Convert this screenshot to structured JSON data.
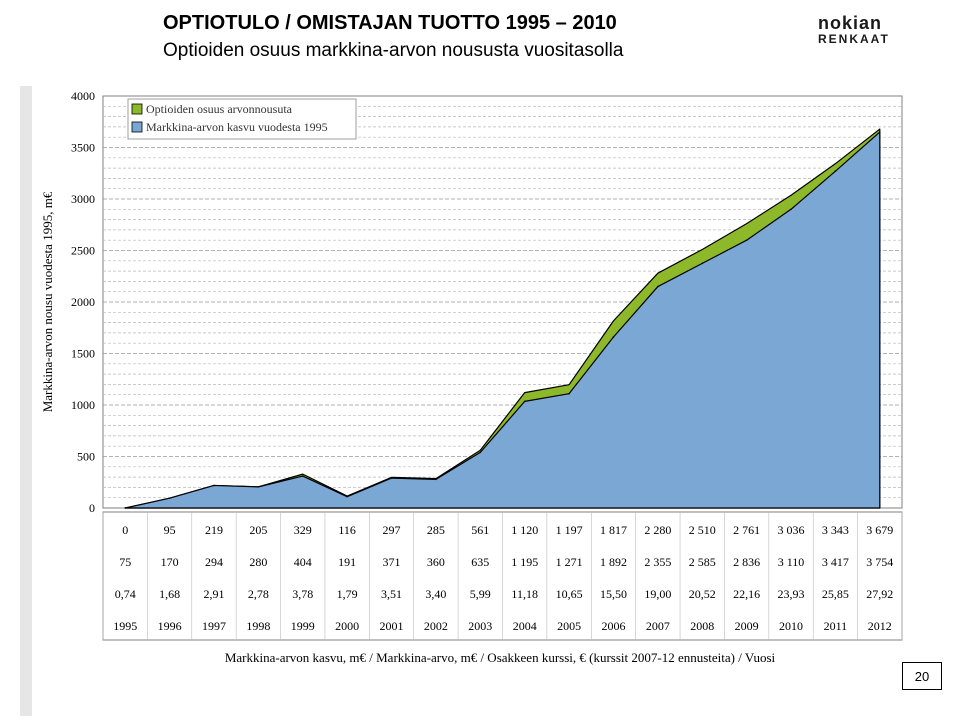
{
  "header": {
    "title": "OPTIOTULO / OMISTAJAN TUOTTO 1995 – 2010",
    "subtitle": "Optioiden osuus markkina-arvon noususta vuositasolla",
    "logo_line1": "nokian",
    "logo_line2": "RENKAAT"
  },
  "page_number": "20",
  "chart_data": {
    "type": "area",
    "ylabel": "Markkina-arvon nousu vuodesta 1995, m€",
    "xlabel": "Markkina-arvon kasvu, m€ / Markkina-arvo, m€ / Osakkeen kurssi, € (kurssit 2007-12 ennusteita) / Vuosi",
    "ylim": [
      0,
      4000
    ],
    "yticks": [
      "4000",
      "3500",
      "3000",
      "2500",
      "2000",
      "1500",
      "1000",
      "500",
      "0"
    ],
    "legend_position": "top-left",
    "grid": true,
    "x": [
      "1995",
      "1996",
      "1997",
      "1998",
      "1999",
      "2000",
      "2001",
      "2002",
      "2003",
      "2004",
      "2005",
      "2006",
      "2007",
      "2008",
      "2009",
      "2010",
      "2011",
      "2012"
    ],
    "series": [
      {
        "name": "Optioiden osuus arvonnousuta",
        "color": "#8DB82A",
        "values": [
          0,
          95,
          219,
          205,
          329,
          116,
          297,
          285,
          561,
          1120,
          1197,
          1817,
          2280,
          2510,
          2761,
          3036,
          3343,
          3679
        ]
      },
      {
        "name": "Markkina-arvon kasvu vuodesta 1995",
        "color": "#7BA7D4",
        "values": [
          0,
          95,
          219,
          205,
          310,
          110,
          290,
          278,
          540,
          1035,
          1110,
          1660,
          2150,
          2375,
          2600,
          2900,
          3270,
          3650
        ]
      }
    ],
    "table_rows": [
      [
        "0",
        "95",
        "219",
        "205",
        "329",
        "116",
        "297",
        "285",
        "561",
        "1 120",
        "1 197",
        "1 817",
        "2 280",
        "2 510",
        "2 761",
        "3 036",
        "3 343",
        "3 679"
      ],
      [
        "75",
        "170",
        "294",
        "280",
        "404",
        "191",
        "371",
        "360",
        "635",
        "1 195",
        "1 271",
        "1 892",
        "2 355",
        "2 585",
        "2 836",
        "3 110",
        "3 417",
        "3 754"
      ],
      [
        "0,74",
        "1,68",
        "2,91",
        "2,78",
        "3,78",
        "1,79",
        "3,51",
        "3,40",
        "5,99",
        "11,18",
        "10,65",
        "15,50",
        "19,00",
        "20,52",
        "22,16",
        "23,93",
        "25,85",
        "27,92"
      ],
      [
        "1995",
        "1996",
        "1997",
        "1998",
        "1999",
        "2000",
        "2001",
        "2002",
        "2003",
        "2004",
        "2005",
        "2006",
        "2007",
        "2008",
        "2009",
        "2010",
        "2011",
        "2012"
      ]
    ]
  }
}
